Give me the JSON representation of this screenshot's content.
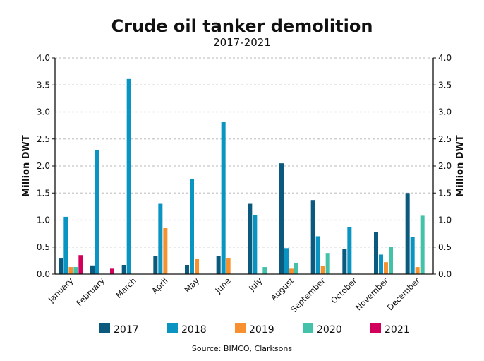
{
  "chart_data": {
    "type": "bar",
    "title": "Crude oil tanker demolition",
    "subtitle": "2017-2021",
    "ylabel": "Million DWT",
    "ylabel_right": "Million DWT",
    "xlabel": "",
    "ylim": [
      0,
      4.0
    ],
    "yticks": [
      "0.0",
      "0.5",
      "1.0",
      "1.5",
      "2.0",
      "2.5",
      "3.0",
      "3.5",
      "4.0"
    ],
    "grid": true,
    "legend_position": "bottom",
    "source": "Source: BIMCO, Clarksons",
    "categories": [
      "January",
      "February",
      "March",
      "April",
      "May",
      "June",
      "July",
      "August",
      "September",
      "October",
      "November",
      "December"
    ],
    "series": [
      {
        "name": "2017",
        "color": "#0b5a7d",
        "values": [
          0.3,
          0.16,
          0.17,
          0.34,
          0.17,
          0.34,
          1.3,
          2.05,
          1.37,
          0.47,
          0.78,
          1.5
        ]
      },
      {
        "name": "2018",
        "color": "#0a94c1",
        "values": [
          1.06,
          2.3,
          3.61,
          1.3,
          1.76,
          2.82,
          1.09,
          0.48,
          0.7,
          0.87,
          0.36,
          0.68
        ]
      },
      {
        "name": "2019",
        "color": "#f7912f",
        "values": [
          0.13,
          0,
          0,
          0.85,
          0.28,
          0.3,
          0,
          0.1,
          0.15,
          0,
          0.22,
          0.13
        ]
      },
      {
        "name": "2020",
        "color": "#43c2a9",
        "values": [
          0.13,
          0,
          0,
          0,
          0,
          0,
          0.13,
          0.21,
          0.39,
          0,
          0.5,
          1.08
        ]
      },
      {
        "name": "2021",
        "color": "#d2005b",
        "values": [
          0.35,
          0.1,
          0,
          0,
          0,
          0,
          0,
          0,
          0,
          0,
          0,
          0
        ]
      }
    ]
  }
}
